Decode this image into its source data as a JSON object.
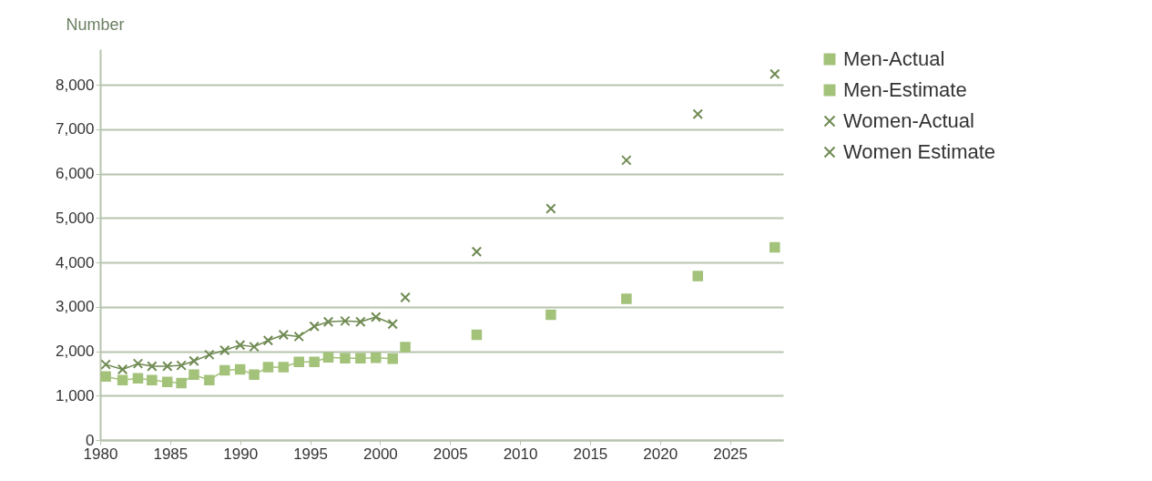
{
  "chart_data": {
    "type": "line",
    "ylabel": "Number",
    "xlim": [
      1980,
      2028.8
    ],
    "xticks": [
      1980,
      1985,
      1990,
      1995,
      2000,
      2005,
      2010,
      2015,
      2020,
      2025
    ],
    "ylim": [
      0,
      8800
    ],
    "yticks": [
      0,
      {
        "value": 1000,
        "label": "1,000"
      },
      {
        "value": 2000,
        "label": "2,000"
      },
      {
        "value": 3000,
        "label": "3,000"
      },
      {
        "value": 4000,
        "label": "4,000"
      },
      {
        "value": 5000,
        "label": "5,000"
      },
      {
        "value": 6000,
        "label": "6,000"
      },
      {
        "value": 7000,
        "label": "7,000"
      },
      {
        "value": 8000,
        "label": "8,000"
      }
    ],
    "grid": "y",
    "legend": "right",
    "series": [
      {
        "name": "Men-Actual",
        "type": "line",
        "marker": "square",
        "color": "#a3c27a",
        "x": [
          1980.4,
          1981.6,
          1982.7,
          1983.7,
          1984.8,
          1985.8,
          1986.7,
          1987.8,
          1988.9,
          1990,
          1991,
          1992,
          1993.1,
          1994.2,
          1995.3,
          1996.3,
          1997.5,
          1998.6,
          1999.7,
          2000.9
        ],
        "values": [
          1430,
          1350,
          1390,
          1350,
          1310,
          1280,
          1470,
          1350,
          1570,
          1590,
          1470,
          1640,
          1640,
          1760,
          1760,
          1860,
          1840,
          1840,
          1850,
          1830
        ]
      },
      {
        "name": "Men-Estimate",
        "type": "scatter",
        "marker": "square",
        "color": "#a3c27a",
        "x": [
          2001.8,
          2006.9,
          2012.2,
          2017.6,
          2022.7,
          2028.2
        ],
        "values": [
          2090,
          2370,
          2820,
          3180,
          3690,
          4340
        ]
      },
      {
        "name": "Women-Actual",
        "type": "line",
        "marker": "cross",
        "color": "#6f8a52",
        "x": [
          1980.4,
          1981.6,
          1982.7,
          1983.7,
          1984.8,
          1985.8,
          1986.7,
          1987.8,
          1988.9,
          1990,
          1991,
          1992,
          1993.1,
          1994.2,
          1995.3,
          1996.3,
          1997.5,
          1998.6,
          1999.7,
          2000.9
        ],
        "values": [
          1700,
          1590,
          1720,
          1660,
          1660,
          1680,
          1780,
          1920,
          2020,
          2140,
          2100,
          2240,
          2370,
          2330,
          2560,
          2660,
          2680,
          2660,
          2770,
          2610
        ]
      },
      {
        "name": "Women Estimate",
        "type": "scatter",
        "marker": "cross",
        "color": "#6f8a52",
        "x": [
          2001.8,
          2006.9,
          2012.2,
          2017.6,
          2022.7,
          2028.2
        ],
        "values": [
          3210,
          4240,
          5210,
          6300,
          7340,
          8240
        ]
      }
    ]
  }
}
